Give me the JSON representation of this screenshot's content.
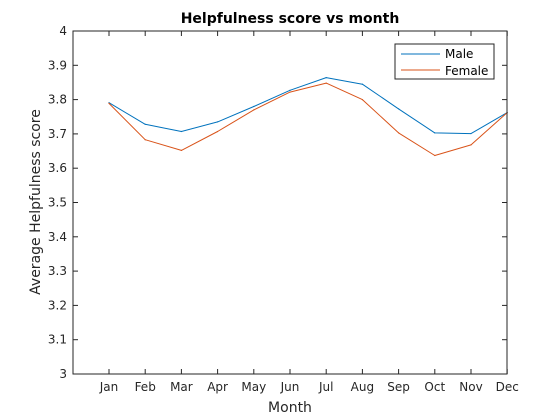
{
  "chart_data": {
    "type": "line",
    "title": "Helpfulness score vs month",
    "xlabel": "Month",
    "ylabel": "Average Helpfulness score",
    "categories": [
      "Jan",
      "Feb",
      "Mar",
      "Apr",
      "May",
      "Jun",
      "Jul",
      "Aug",
      "Sep",
      "Oct",
      "Nov",
      "Dec"
    ],
    "ylim": [
      3,
      4
    ],
    "yticks": [
      3,
      3.1,
      3.2,
      3.3,
      3.4,
      3.5,
      3.6,
      3.7,
      3.8,
      3.9,
      4
    ],
    "ytick_labels": [
      "3",
      "3.1",
      "3.2",
      "3.3",
      "3.4",
      "3.5",
      "3.6",
      "3.7",
      "3.8",
      "3.9",
      "4"
    ],
    "grid": false,
    "legend_position": "top-right",
    "series": [
      {
        "name": "Male",
        "color": "#0072BD",
        "values": [
          3.791,
          3.728,
          3.707,
          3.735,
          3.78,
          3.827,
          3.864,
          3.845,
          3.773,
          3.703,
          3.701,
          3.762
        ]
      },
      {
        "name": "Female",
        "color": "#D95319",
        "values": [
          3.789,
          3.683,
          3.652,
          3.707,
          3.77,
          3.822,
          3.848,
          3.8,
          3.703,
          3.637,
          3.668,
          3.762
        ]
      }
    ]
  }
}
